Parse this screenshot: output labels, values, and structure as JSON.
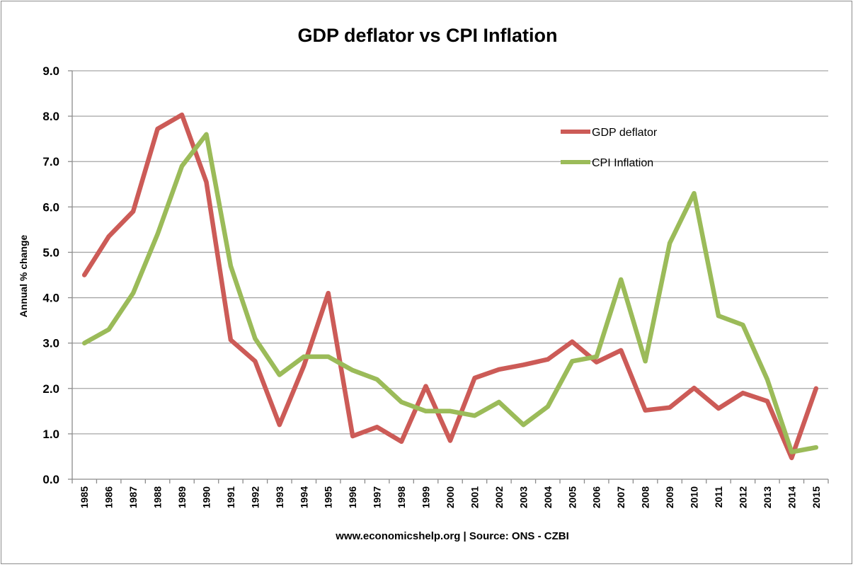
{
  "chart_data": {
    "type": "line",
    "title": "GDP deflator vs CPI Inflation",
    "ylabel": "Annual % change",
    "xlabel": "",
    "source_note": "www.economicshelp.org | Source: ONS - CZBI",
    "ylim": [
      0,
      9
    ],
    "y_ticks": [
      "0.0",
      "1.0",
      "2.0",
      "3.0",
      "4.0",
      "5.0",
      "6.0",
      "7.0",
      "8.0",
      "9.0"
    ],
    "grid": "horizontal",
    "legend_position": "top-right",
    "categories": [
      "1985",
      "1986",
      "1987",
      "1988",
      "1989",
      "1990",
      "1991",
      "1992",
      "1993",
      "1994",
      "1995",
      "1996",
      "1997",
      "1998",
      "1999",
      "2000",
      "2001",
      "2002",
      "2003",
      "2004",
      "2005",
      "2006",
      "2007",
      "2008",
      "2009",
      "2010",
      "2011",
      "2012",
      "2013",
      "2014",
      "2015"
    ],
    "series": [
      {
        "name": "GDP deflator",
        "color": "#cc5b57",
        "values": [
          4.5,
          5.35,
          5.9,
          7.72,
          8.03,
          6.55,
          3.07,
          2.6,
          1.2,
          2.5,
          4.1,
          0.95,
          1.15,
          0.83,
          2.05,
          0.85,
          2.23,
          2.42,
          2.52,
          2.64,
          3.03,
          2.58,
          2.84,
          1.52,
          1.58,
          2.01,
          1.56,
          1.9,
          1.72,
          0.47,
          2.0
        ]
      },
      {
        "name": "CPI Inflation",
        "color": "#9bbb59",
        "values": [
          3.0,
          3.3,
          4.1,
          5.4,
          6.9,
          7.6,
          4.7,
          3.1,
          2.3,
          2.7,
          2.7,
          2.4,
          2.2,
          1.7,
          1.5,
          1.5,
          1.4,
          1.7,
          1.2,
          1.6,
          2.6,
          2.7,
          4.4,
          2.6,
          5.2,
          6.3,
          3.6,
          3.4,
          2.2,
          0.6,
          0.7
        ]
      }
    ]
  }
}
